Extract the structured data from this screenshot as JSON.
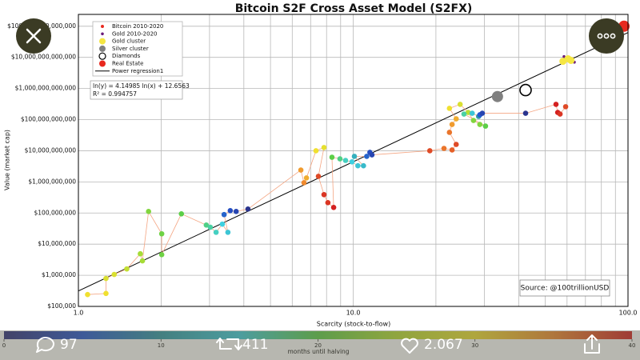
{
  "chart_data": {
    "type": "scatter",
    "title": "Bitcoin S2F Cross Asset Model (S2FX)",
    "x_label": "Scarcity (stock-to-flow)",
    "y_label": "Value (market cap)",
    "log_x": true,
    "log_y": true,
    "grid": true,
    "legend": "upper left",
    "xlim": [
      1,
      100
    ],
    "xticks": [
      {
        "value": 1,
        "label": "1.0"
      },
      {
        "value": 10,
        "label": "10.0"
      },
      {
        "value": 100,
        "label": "100.0"
      }
    ],
    "ylim": [
      100000,
      240000000000000
    ],
    "yticks": [
      {
        "value": 100000,
        "label": "$100,000"
      },
      {
        "value": 1000000,
        "label": "$1,000,000"
      },
      {
        "value": 10000000,
        "label": "$10,000,000"
      },
      {
        "value": 100000000,
        "label": "$100,000,000"
      },
      {
        "value": 1000000000,
        "label": "$1,000,000,000"
      },
      {
        "value": 10000000000,
        "label": "$10,000,000,000"
      },
      {
        "value": 100000000000,
        "label": "$100,000,000,000"
      },
      {
        "value": 1000000000000,
        "label": "$1,000,000,000,000"
      },
      {
        "value": 10000000000000,
        "label": "$10,000,000,000,000"
      },
      {
        "value": 100000000000000,
        "label": "$100,000,000,000,000"
      }
    ],
    "series": [
      {
        "name": "Bitcoin 2010-2020",
        "color": "#e8281e",
        "line_color": "#f4a582",
        "x": [
          1.08,
          1.26,
          1.26,
          1.35,
          1.5,
          1.68,
          1.71,
          1.8,
          2.01,
          2.01,
          2.37,
          2.92,
          3.02,
          3.17,
          3.34,
          3.5,
          3.39,
          3.57,
          3.75,
          4.14,
          6.45,
          6.62,
          6.76,
          7.32,
          7.83,
          7.47,
          7.83,
          8.09,
          8.49,
          8.37,
          8.95,
          9.38,
          9.9,
          10.4,
          10.9,
          10.1,
          11.2,
          11.5,
          11.7,
          19.0,
          21.4,
          22.9,
          23.7,
          22.4,
          22.9,
          23.7,
          22.4,
          24.5,
          26.2,
          27.4,
          28.9,
          30.3,
          25.3,
          27.1,
          28.6,
          28.9,
          29.5,
          42.4,
          54.7,
          55.5,
          56.6,
          59.3
        ],
        "values": [
          240000,
          260000,
          790000,
          1060000,
          1600000,
          4900000,
          2900000,
          112000000,
          21500000,
          4600000,
          94000000,
          41000000,
          35000000,
          24000000,
          44000000,
          24000000,
          89000000,
          119000000,
          112000000,
          134000000,
          2400000000,
          940000000,
          1340000000,
          10000000000,
          12700000000,
          1510000000,
          390000000,
          215000000,
          151000000,
          6200000000,
          5500000000,
          4900000000,
          4400000000,
          3300000000,
          3300000000,
          6600000000,
          6600000000,
          8900000000,
          7400000000,
          10000000000,
          11900000000,
          10600000000,
          16000000000,
          39000000000,
          70000000000,
          106000000000,
          230000000000,
          310000000000,
          170000000000,
          94000000000,
          70000000000,
          62000000000,
          151000000000,
          160000000000,
          127000000000,
          143000000000,
          160000000000,
          160000000000,
          310000000000,
          170000000000,
          151000000000,
          260000000000
        ],
        "months": [
          30,
          30,
          28,
          28,
          26,
          24,
          24,
          22,
          21,
          21,
          20,
          18,
          17,
          16,
          15,
          14,
          6,
          4,
          3,
          1,
          34,
          35,
          33,
          30,
          29,
          38,
          39,
          39,
          40,
          20,
          18,
          16,
          15,
          14,
          13,
          12,
          6,
          4,
          3,
          38,
          36,
          37,
          38,
          36,
          34,
          33,
          30,
          28,
          25,
          22,
          22,
          20,
          17,
          14,
          10,
          5,
          3,
          1,
          40,
          40,
          39,
          38
        ]
      },
      {
        "name": "Gold 2010-2020",
        "color": "#6a1b7a",
        "x": [
          63.8,
          60.5,
          58.5
        ],
        "values": [
          7000000000000,
          7900000000000,
          10600000000000
        ]
      },
      {
        "name": "Gold cluster",
        "color": "#f5e642",
        "x": [
          60.5,
          62.0,
          58.0
        ],
        "values": [
          9000000000000,
          8000000000000,
          7500000000000
        ]
      },
      {
        "name": "Silver cluster",
        "color": "#808080",
        "x": [
          33.5
        ],
        "values": [
          550000000000
        ]
      },
      {
        "name": "Diamonds",
        "color": "#000000",
        "hollow": true,
        "x": [
          42.4
        ],
        "values": [
          890000000000
        ]
      },
      {
        "name": "Real Estate",
        "color": "#e8281e",
        "x": [
          96.7
        ],
        "values": [
          100000000000000
        ]
      }
    ],
    "regression": {
      "name": "Power regression1",
      "color": "#000000",
      "slope": 4.14985,
      "intercept": 12.6563,
      "equation": "ln(y) = 4.14985 ln(x) + 12.6563",
      "r2_label": "R² = 0.994757"
    },
    "source": "Source: @100trillionUSD",
    "colorbar": {
      "label": "months until halving",
      "lim": [
        0,
        40
      ],
      "ticks": [
        0,
        10,
        20,
        30,
        40
      ],
      "colors": [
        "#2b2c7c",
        "#2456d4",
        "#2e9aa8",
        "#3fd0e0",
        "#5ccf48",
        "#b8df32",
        "#f0e030",
        "#f08a2e",
        "#d42020"
      ]
    }
  },
  "ui": {
    "replies": "97",
    "retweets": "411",
    "likes": "2.067"
  }
}
